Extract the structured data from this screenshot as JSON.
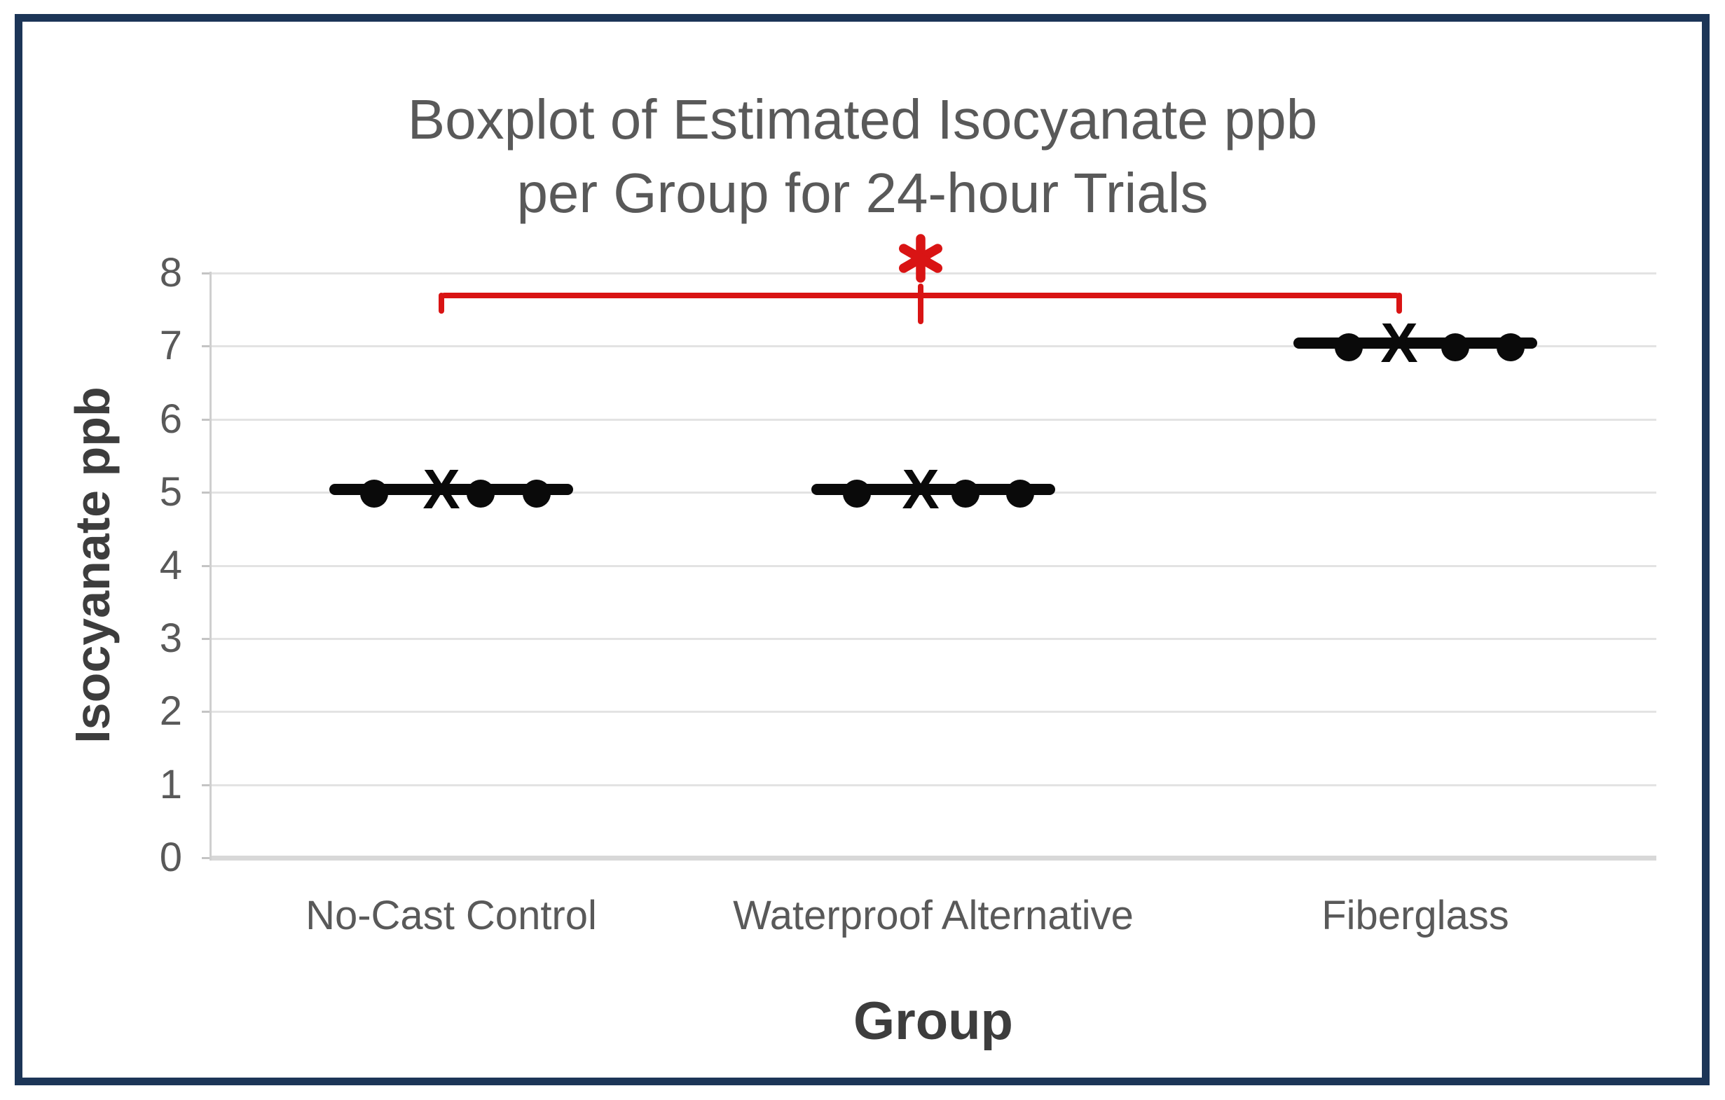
{
  "frame": {
    "border_color": "#1c3557"
  },
  "title": {
    "line1": "Boxplot of Estimated Isocyanate ppb",
    "line2": "per Group for 24-hour Trials"
  },
  "y_axis": {
    "label": "Isocyanate ppb",
    "ticks": [
      8,
      7,
      6,
      5,
      4,
      3,
      2,
      1,
      0
    ],
    "min": 0,
    "max": 8
  },
  "x_axis": {
    "label": "Group"
  },
  "significance": {
    "symbol": "*",
    "color": "#d91414",
    "from_group": "No-Cast Control",
    "to_group": "Fiberglass",
    "tick_at_group": "Waterproof Alternative"
  },
  "chart_data": {
    "type": "boxplot",
    "title": "Boxplot of Estimated Isocyanate ppb per Group for 24-hour Trials",
    "xlabel": "Group",
    "ylabel": "Isocyanate ppb",
    "ylim": [
      0,
      8
    ],
    "ytick_step": 1,
    "grid": true,
    "categories": [
      "No-Cast Control",
      "Waterproof Alternative",
      "Fiberglass"
    ],
    "groups": [
      {
        "label": "No-Cast Control",
        "box": {
          "min": 5,
          "q1": 5,
          "median": 5,
          "q3": 5,
          "max": 5
        },
        "mean": 5.05,
        "points": [
          4.97,
          4.97,
          4.97
        ],
        "display": {
          "bar_v": 5.04,
          "point_dx": [
            -110,
            42,
            122
          ],
          "mean_dx": -14
        }
      },
      {
        "label": "Waterproof Alternative",
        "box": {
          "min": 5,
          "q1": 5,
          "median": 5,
          "q3": 5,
          "max": 5
        },
        "mean": 5.05,
        "points": [
          4.97,
          4.97,
          4.97
        ],
        "display": {
          "bar_v": 5.04,
          "point_dx": [
            -109,
            46,
            124
          ],
          "mean_dx": -18
        }
      },
      {
        "label": "Fiberglass",
        "box": {
          "min": 7,
          "q1": 7,
          "median": 7,
          "q3": 7,
          "max": 7
        },
        "mean": 7.05,
        "points": [
          6.97,
          6.97,
          6.97
        ],
        "display": {
          "bar_v": 7.04,
          "point_dx": [
            -95,
            57,
            136
          ],
          "mean_dx": -23
        }
      }
    ],
    "annotation": {
      "type": "significance-bracket",
      "symbol": "*",
      "color": "#d91414",
      "spans": [
        "No-Cast Control",
        "Fiberglass"
      ],
      "bracket_y_value": 7.69,
      "symbol_y_value": 8.2
    }
  }
}
